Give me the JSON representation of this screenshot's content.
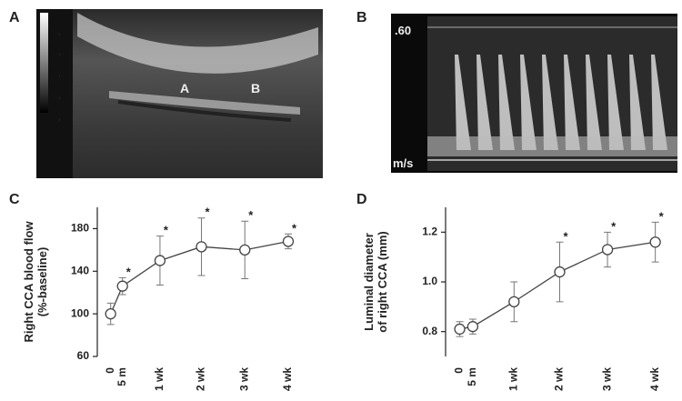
{
  "panels": {
    "a": {
      "label": "A",
      "image_labels": [
        "A",
        "B"
      ]
    },
    "b": {
      "label": "B",
      "scale_top": ".60",
      "unit": "m/s"
    },
    "c": {
      "label": "C"
    },
    "d": {
      "label": "D"
    }
  },
  "chart_data": [
    {
      "type": "line",
      "ylabel": [
        "Right CCA blood flow",
        "(%-baseline)"
      ],
      "categories": [
        "0",
        "5 m",
        "1 wk",
        "2 wk",
        "3 wk",
        "4 wk"
      ],
      "values": [
        100,
        126,
        150,
        163,
        160,
        168
      ],
      "errors": [
        10,
        8,
        23,
        27,
        27,
        7
      ],
      "markers": [
        null,
        "*",
        "*",
        "*",
        "*",
        "*"
      ],
      "color": "#444444",
      "ylim": [
        60,
        200
      ],
      "yticks": [
        60,
        100,
        140,
        180
      ]
    },
    {
      "type": "line",
      "ylabel": [
        "Luminal diameter",
        "of right CCA (mm)"
      ],
      "categories": [
        "0",
        "5 m",
        "1 wk",
        "2 wk",
        "3 wk",
        "4 wk"
      ],
      "values": [
        0.81,
        0.82,
        0.92,
        1.04,
        1.13,
        1.16
      ],
      "errors": [
        0.03,
        0.03,
        0.08,
        0.12,
        0.07,
        0.08
      ],
      "markers": [
        null,
        null,
        null,
        "*",
        "*",
        "*"
      ],
      "color": "#444444",
      "ylim": [
        0.7,
        1.3
      ],
      "yticks": [
        0.8,
        {
          "value": 1,
          "label": "1.0"
        },
        1.2
      ]
    }
  ]
}
